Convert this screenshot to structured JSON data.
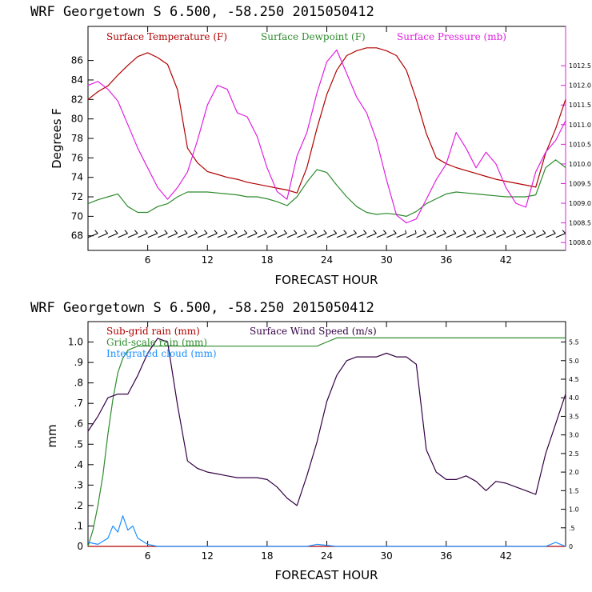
{
  "chart_data": [
    {
      "type": "line",
      "title": "WRF   Georgetown S   6.500, -58.250  2015050412",
      "xlabel": "FORECAST HOUR",
      "ylabel": "Degrees F",
      "xlim": [
        0,
        48
      ],
      "ylim": [
        66.5,
        89.5
      ],
      "y2lim": [
        1007.8,
        1013.5
      ],
      "xticks": [
        6,
        12,
        18,
        24,
        30,
        36,
        42
      ],
      "xtick_labels": [
        "6",
        "12",
        "18",
        "24",
        "30",
        "36",
        "42"
      ],
      "yticks": [
        68,
        70,
        72,
        74,
        76,
        78,
        80,
        82,
        84,
        86
      ],
      "ytick_labels": [
        "68",
        "70",
        "72",
        "74",
        "76",
        "78",
        "80",
        "82",
        "84",
        "86"
      ],
      "y2ticks": [
        1008.0,
        1008.5,
        1009.0,
        1009.5,
        1010.0,
        1010.5,
        1011.0,
        1011.5,
        1012.0,
        1012.5
      ],
      "y2tick_labels": [
        "1008.0",
        "1008.5",
        "1009.0",
        "1009.5",
        "1010.0",
        "1010.5",
        "1011.0",
        "1011.5",
        "1012.0",
        "1012.5"
      ],
      "legend": [
        "Surface Temperature (F)",
        "Surface Dewpoint (F)",
        "Surface Pressure (mb)"
      ],
      "legend_position": "top-left",
      "colors": {
        "temperature": "#b00000",
        "dewpoint": "#2e8b2e",
        "pressure": "#e020e0",
        "barbs": "#000000"
      },
      "series": [
        {
          "name": "Surface Temperature (F)",
          "axis": "left",
          "x": [
            0,
            1,
            2,
            3,
            4,
            5,
            6,
            7,
            8,
            9,
            10,
            11,
            12,
            13,
            14,
            15,
            16,
            17,
            18,
            19,
            20,
            21,
            22,
            23,
            24,
            25,
            26,
            27,
            28,
            29,
            30,
            31,
            32,
            33,
            34,
            35,
            36,
            37,
            38,
            39,
            40,
            41,
            42,
            43,
            44,
            45,
            46,
            47,
            48
          ],
          "y": [
            82.0,
            82.8,
            83.4,
            84.5,
            85.5,
            86.4,
            86.8,
            86.3,
            85.6,
            83.0,
            77.0,
            75.5,
            74.6,
            74.3,
            74.0,
            73.8,
            73.5,
            73.3,
            73.1,
            72.9,
            72.7,
            72.4,
            75.0,
            79.0,
            82.5,
            85.0,
            86.5,
            87.0,
            87.3,
            87.3,
            87.0,
            86.5,
            85.0,
            82.0,
            78.5,
            76.0,
            75.4,
            75.0,
            74.7,
            74.4,
            74.1,
            73.8,
            73.6,
            73.4,
            73.2,
            73.0,
            76.5,
            79.0,
            82.0
          ]
        },
        {
          "name": "Surface Dewpoint (F)",
          "axis": "left",
          "x": [
            0,
            1,
            2,
            3,
            4,
            5,
            6,
            7,
            8,
            9,
            10,
            11,
            12,
            13,
            14,
            15,
            16,
            17,
            18,
            19,
            20,
            21,
            22,
            23,
            24,
            25,
            26,
            27,
            28,
            29,
            30,
            31,
            32,
            33,
            34,
            35,
            36,
            37,
            38,
            39,
            40,
            41,
            42,
            43,
            44,
            45,
            46,
            47,
            48
          ],
          "y": [
            71.3,
            71.7,
            72.0,
            72.3,
            71.0,
            70.4,
            70.4,
            71.0,
            71.3,
            72.0,
            72.5,
            72.5,
            72.5,
            72.4,
            72.3,
            72.2,
            72.0,
            72.0,
            71.8,
            71.5,
            71.1,
            72.0,
            73.5,
            74.8,
            74.5,
            73.2,
            72.0,
            71.0,
            70.4,
            70.2,
            70.3,
            70.2,
            70.0,
            70.5,
            71.3,
            71.8,
            72.3,
            72.5,
            72.4,
            72.3,
            72.2,
            72.1,
            72.0,
            72.0,
            72.0,
            72.2,
            75.0,
            75.8,
            75.0
          ]
        },
        {
          "name": "Surface Pressure (mb)",
          "axis": "right",
          "x": [
            0,
            1,
            2,
            3,
            4,
            5,
            6,
            7,
            8,
            9,
            10,
            11,
            12,
            13,
            14,
            15,
            16,
            17,
            18,
            19,
            20,
            21,
            22,
            23,
            24,
            25,
            26,
            27,
            28,
            29,
            30,
            31,
            32,
            33,
            34,
            35,
            36,
            37,
            38,
            39,
            40,
            41,
            42,
            43,
            44,
            45,
            46,
            47,
            48
          ],
          "y": [
            1012.0,
            1012.1,
            1011.9,
            1011.6,
            1011.0,
            1010.4,
            1009.9,
            1009.4,
            1009.1,
            1009.4,
            1009.8,
            1010.6,
            1011.5,
            1012.0,
            1011.9,
            1011.3,
            1011.2,
            1010.7,
            1009.9,
            1009.3,
            1009.1,
            1010.2,
            1010.8,
            1011.8,
            1012.6,
            1012.9,
            1012.3,
            1011.7,
            1011.3,
            1010.6,
            1009.6,
            1008.7,
            1008.5,
            1008.6,
            1009.1,
            1009.6,
            1010.0,
            1010.8,
            1010.4,
            1009.9,
            1010.3,
            1010.0,
            1009.4,
            1009.0,
            1008.9,
            1009.8,
            1010.3,
            1010.6,
            1011.1
          ]
        }
      ],
      "wind_barbs": {
        "y": 68,
        "count": 48
      }
    },
    {
      "type": "line",
      "title": "WRF   Georgetown S   6.500, -58.250  2015050412",
      "xlabel": "FORECAST HOUR",
      "ylabel": "mm",
      "xlim": [
        0,
        48
      ],
      "ylim": [
        0,
        1.1
      ],
      "y2lim": [
        0,
        6.05
      ],
      "xticks": [
        6,
        12,
        18,
        24,
        30,
        36,
        42
      ],
      "xtick_labels": [
        "6",
        "12",
        "18",
        "24",
        "30",
        "36",
        "42"
      ],
      "yticks": [
        0,
        0.1,
        0.2,
        0.3,
        0.4,
        0.5,
        0.6,
        0.7,
        0.8,
        0.9,
        1.0
      ],
      "ytick_labels": [
        "0",
        ".1",
        ".2",
        ".3",
        ".4",
        ".5",
        ".6",
        ".7",
        ".8",
        ".9",
        "1.0"
      ],
      "y2ticks": [
        0,
        0.5,
        1.0,
        1.5,
        2.0,
        2.5,
        3.0,
        3.5,
        4.0,
        4.5,
        5.0,
        5.5
      ],
      "y2tick_labels": [
        "0",
        ".5",
        "1.0",
        "1.5",
        "2.0",
        "2.5",
        "3.0",
        "3.5",
        "4.0",
        "4.5",
        "5.0",
        "5.5"
      ],
      "legend": [
        "Sub-grid rain (mm)",
        "Grid-scale rain (mm)",
        "Integrated cloud (mm)",
        "Surface Wind Speed (m/s)"
      ],
      "legend_position": "top-left",
      "colors": {
        "subgrid": "#b00000",
        "gridscale": "#2e8b2e",
        "cloud": "#1e90ff",
        "wind": "#330044"
      },
      "series": [
        {
          "name": "Sub-grid rain (mm)",
          "axis": "left",
          "x": [
            0,
            48
          ],
          "y": [
            0,
            0
          ]
        },
        {
          "name": "Grid-scale rain (mm)",
          "axis": "left",
          "x": [
            0,
            0.5,
            1,
            1.5,
            2,
            2.5,
            3,
            3.5,
            4,
            4.5,
            5,
            23,
            24,
            25,
            48
          ],
          "y": [
            0.0,
            0.08,
            0.2,
            0.35,
            0.55,
            0.72,
            0.85,
            0.92,
            0.96,
            0.97,
            0.98,
            0.98,
            1.0,
            1.02,
            1.02
          ]
        },
        {
          "name": "Integrated cloud (mm)",
          "axis": "left",
          "x": [
            0,
            1,
            2,
            2.5,
            3,
            3.5,
            4,
            4.5,
            5,
            6,
            7,
            10,
            22,
            23,
            25,
            30,
            32,
            46,
            47,
            48
          ],
          "y": [
            0.02,
            0.01,
            0.04,
            0.1,
            0.07,
            0.15,
            0.08,
            0.1,
            0.04,
            0.01,
            0.0,
            0.0,
            0.0,
            0.01,
            0.0,
            0.0,
            0.0,
            0.0,
            0.02,
            0.0
          ]
        },
        {
          "name": "Surface Wind Speed (m/s)",
          "axis": "right",
          "x": [
            0,
            1,
            2,
            3,
            4,
            5,
            6,
            7,
            8,
            9,
            10,
            11,
            12,
            13,
            14,
            15,
            16,
            17,
            18,
            19,
            20,
            21,
            22,
            23,
            24,
            25,
            26,
            27,
            28,
            29,
            30,
            31,
            32,
            33,
            34,
            35,
            36,
            37,
            38,
            39,
            40,
            41,
            42,
            43,
            44,
            45,
            46,
            47,
            48
          ],
          "y": [
            3.1,
            3.5,
            4.0,
            4.1,
            4.1,
            4.6,
            5.2,
            5.6,
            5.5,
            3.8,
            2.3,
            2.1,
            2.0,
            1.95,
            1.9,
            1.85,
            1.85,
            1.85,
            1.8,
            1.6,
            1.3,
            1.1,
            1.9,
            2.8,
            3.9,
            4.6,
            5.0,
            5.1,
            5.1,
            5.1,
            5.2,
            5.1,
            5.1,
            4.9,
            2.6,
            2.0,
            1.8,
            1.8,
            1.9,
            1.75,
            1.5,
            1.75,
            1.7,
            1.6,
            1.5,
            1.4,
            2.5,
            3.3,
            4.1
          ]
        }
      ]
    }
  ]
}
